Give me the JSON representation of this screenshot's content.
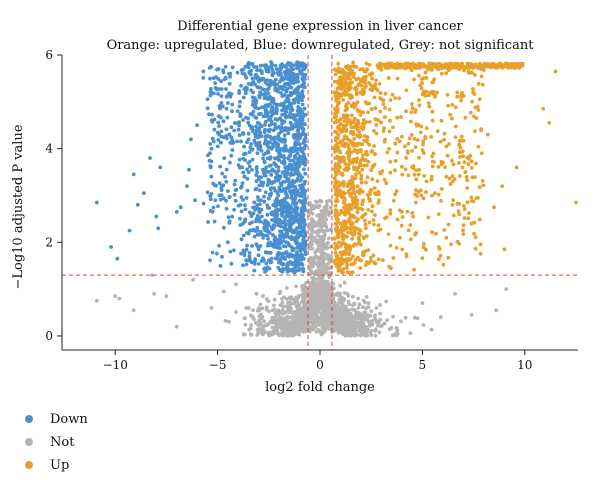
{
  "chart_data": {
    "type": "scatter",
    "title": "Differential gene expression in liver cancer",
    "subtitle": "Orange: upregulated, Blue: downregulated, Grey: not significant",
    "xlabel": "log2 fold change",
    "ylabel": "−Log10 adjusted P value",
    "xlim": [
      -12.6,
      12.6
    ],
    "ylim": [
      -0.3,
      6.0
    ],
    "x_ticks": [
      -10,
      -5,
      0,
      5,
      10
    ],
    "y_ticks": [
      0,
      2,
      4,
      6
    ],
    "grid": false,
    "legend_position": "bottom-left",
    "thresholds": {
      "log2fc": [
        -0.58,
        0.58
      ],
      "neg_log10_padj": 1.3
    },
    "colors": {
      "Down": "#4a90d0",
      "Not": "#b4b4b4",
      "Up": "#e8a02a",
      "threshold": "#e8413a"
    },
    "series": [
      {
        "name": "Down",
        "color": "#4a90d0",
        "points": [
          [
            -10.9,
            2.85
          ],
          [
            -10.2,
            1.9
          ],
          [
            -9.9,
            1.65
          ],
          [
            -9.3,
            2.25
          ],
          [
            -9.1,
            3.45
          ],
          [
            -8.9,
            2.8
          ],
          [
            -8.6,
            3.05
          ],
          [
            -8.3,
            3.8
          ],
          [
            -8.0,
            2.55
          ],
          [
            -7.9,
            2.3
          ],
          [
            -7.8,
            3.6
          ],
          [
            -7.0,
            2.65
          ],
          [
            -6.8,
            2.75
          ],
          [
            -6.5,
            3.2
          ],
          [
            -6.4,
            3.55
          ],
          [
            -6.3,
            4.2
          ],
          [
            -6.1,
            2.9
          ],
          [
            -6.0,
            4.5
          ],
          [
            -5.7,
            5.65
          ],
          [
            -5.3,
            4.0
          ],
          [
            -5.1,
            5.3
          ],
          [
            -4.95,
            5.7
          ],
          [
            -4.8,
            3.2
          ],
          [
            -4.5,
            2.0
          ],
          [
            -4.3,
            4.8
          ]
        ]
      },
      {
        "name": "Not",
        "color": "#b4b4b4",
        "points": [
          [
            -10.9,
            0.75
          ],
          [
            -10.0,
            0.85
          ],
          [
            -9.8,
            0.8
          ],
          [
            -9.1,
            0.55
          ],
          [
            -8.2,
            1.3
          ],
          [
            -8.1,
            0.9
          ],
          [
            -7.5,
            0.85
          ],
          [
            -7.0,
            0.2
          ],
          [
            -6.2,
            1.2
          ],
          [
            -5.3,
            0.6
          ],
          [
            -4.7,
            0.95
          ],
          [
            -4.1,
            1.1
          ],
          [
            -3.6,
            0.6
          ],
          [
            -3.1,
            0.9
          ],
          [
            5.0,
            0.7
          ],
          [
            5.9,
            0.4
          ],
          [
            6.6,
            0.9
          ],
          [
            7.4,
            0.45
          ],
          [
            8.6,
            0.55
          ],
          [
            9.1,
            1.0
          ]
        ]
      },
      {
        "name": "Up",
        "color": "#e8a02a",
        "points": [
          [
            12.5,
            2.85
          ],
          [
            11.5,
            5.65
          ],
          [
            11.2,
            4.55
          ],
          [
            10.9,
            4.85
          ],
          [
            9.6,
            3.6
          ],
          [
            9.0,
            1.85
          ],
          [
            8.9,
            3.2
          ],
          [
            8.5,
            2.75
          ],
          [
            8.2,
            4.3
          ],
          [
            7.9,
            3.9
          ],
          [
            7.7,
            4.9
          ],
          [
            7.4,
            2.4
          ],
          [
            7.1,
            3.5
          ],
          [
            6.7,
            5.2
          ],
          [
            6.5,
            2.9
          ],
          [
            6.3,
            4.1
          ],
          [
            6.0,
            3.7
          ],
          [
            5.8,
            2.6
          ],
          [
            5.5,
            4.6
          ],
          [
            5.2,
            3.3
          ],
          [
            4.9,
            5.35
          ],
          [
            4.7,
            2.2
          ],
          [
            4.5,
            3.95
          ],
          [
            4.2,
            4.8
          ],
          [
            4.0,
            2.65
          ]
        ]
      }
    ]
  },
  "legend": {
    "items": [
      {
        "label": "Down",
        "color": "#4a90d0"
      },
      {
        "label": "Not",
        "color": "#b4b4b4"
      },
      {
        "label": "Up",
        "color": "#e8a02a"
      }
    ]
  }
}
